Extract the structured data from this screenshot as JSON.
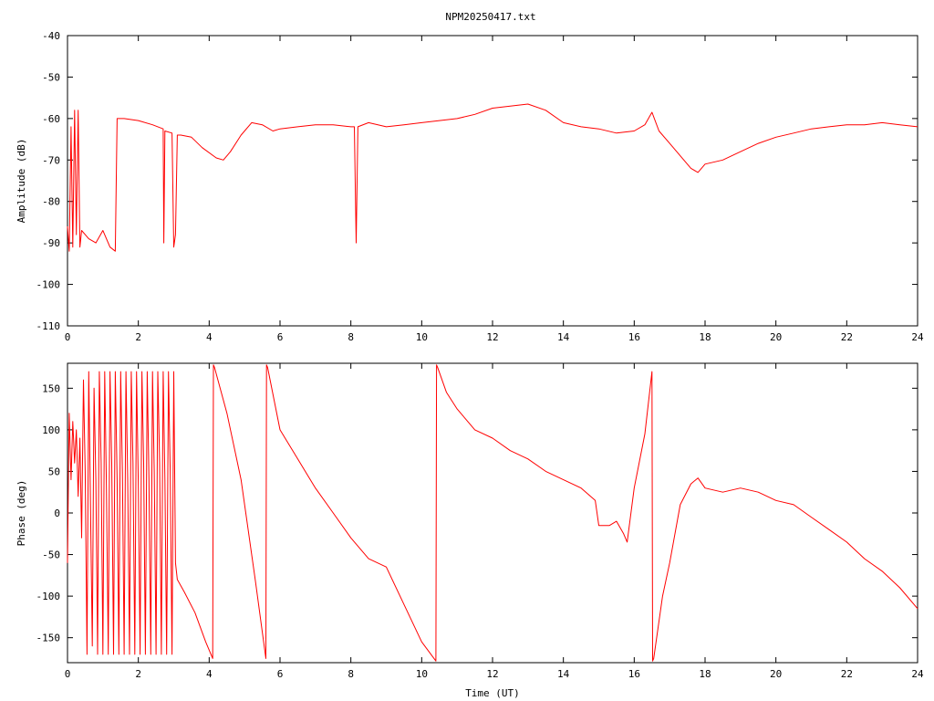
{
  "title": "NPM20250417.txt",
  "colors": {
    "trace": "#ff0000",
    "axes": "#000000",
    "background": "#ffffff"
  },
  "chart_data": [
    {
      "type": "line",
      "title": "NPM20250417.txt",
      "xlabel": "",
      "ylabel": "Amplitude (dB)",
      "xlim": [
        0,
        24
      ],
      "ylim": [
        -110,
        -40
      ],
      "xticks": [
        0,
        2,
        4,
        6,
        8,
        10,
        12,
        14,
        16,
        18,
        20,
        22,
        24
      ],
      "yticks": [
        -110,
        -100,
        -90,
        -80,
        -70,
        -60,
        -50,
        -40
      ],
      "grid": false,
      "series": [
        {
          "x": [
            0,
            0.05,
            0.1,
            0.15,
            0.2,
            0.25,
            0.3,
            0.35,
            0.4,
            0.6,
            0.8,
            1.0,
            1.2,
            1.35,
            1.4,
            1.6,
            2.0,
            2.4,
            2.7,
            2.72,
            2.75,
            2.95,
            3.0,
            3.05,
            3.1,
            3.15,
            3.2,
            3.5,
            3.8,
            4.2,
            4.4,
            4.6,
            4.9,
            5.2,
            5.5,
            5.8,
            6.0,
            6.5,
            7.0,
            7.5,
            8.0,
            8.1,
            8.15,
            8.2,
            8.5,
            9.0,
            9.5,
            10.0,
            10.5,
            11.0,
            11.5,
            12.0,
            12.5,
            13.0,
            13.5,
            14.0,
            14.5,
            15.0,
            15.5,
            16.0,
            16.3,
            16.5,
            16.7,
            17.0,
            17.3,
            17.6,
            17.8,
            18.0,
            18.5,
            19.0,
            19.5,
            20.0,
            20.5,
            21.0,
            21.5,
            22.0,
            22.5,
            23.0,
            23.5,
            24.0
          ],
          "y": [
            -86,
            -92,
            -62,
            -91,
            -58,
            -88,
            -58,
            -91,
            -87,
            -89,
            -90,
            -87,
            -91,
            -92,
            -60,
            -60,
            -60.5,
            -61.5,
            -62.5,
            -90,
            -63,
            -63.5,
            -91,
            -88,
            -64,
            -64,
            -64,
            -64.5,
            -67,
            -69.5,
            -70,
            -68,
            -64,
            -61,
            -61.5,
            -63,
            -62.5,
            -62,
            -61.5,
            -61.5,
            -62,
            -62,
            -90,
            -62,
            -61,
            -62,
            -61.5,
            -61,
            -60.5,
            -60,
            -59,
            -57.5,
            -57,
            -56.5,
            -58,
            -61,
            -62,
            -62.5,
            -63.5,
            -63,
            -61.5,
            -58.5,
            -63,
            -66,
            -69,
            -72,
            -73,
            -71,
            -70,
            -68,
            -66,
            -64.5,
            -63.5,
            -62.5,
            -62,
            -61.5,
            -61.5,
            -61,
            -61.5,
            -62
          ]
        }
      ]
    },
    {
      "type": "line",
      "title": "",
      "xlabel": "Time (UT)",
      "ylabel": "Phase (deg)",
      "xlim": [
        0,
        24
      ],
      "ylim": [
        -180,
        180
      ],
      "xticks": [
        0,
        2,
        4,
        6,
        8,
        10,
        12,
        14,
        16,
        18,
        20,
        22,
        24
      ],
      "yticks": [
        -150,
        -100,
        -50,
        0,
        50,
        100,
        150
      ],
      "grid": false,
      "series": [
        {
          "x": [
            0,
            0.05,
            0.1,
            0.15,
            0.2,
            0.25,
            0.3,
            0.35,
            0.4,
            0.45,
            0.5,
            0.55,
            0.6,
            0.65,
            0.7,
            0.75,
            0.8,
            0.85,
            0.9,
            0.95,
            1.0,
            1.05,
            1.1,
            1.15,
            1.2,
            1.25,
            1.3,
            1.35,
            1.4,
            1.45,
            1.5,
            1.55,
            1.6,
            1.65,
            1.7,
            1.75,
            1.8,
            1.85,
            1.9,
            1.95,
            2.0,
            2.05,
            2.1,
            2.15,
            2.2,
            2.25,
            2.3,
            2.35,
            2.4,
            2.45,
            2.5,
            2.55,
            2.6,
            2.65,
            2.7,
            2.75,
            2.8,
            2.85,
            2.9,
            2.95,
            3.0,
            3.05,
            3.1,
            3.3,
            3.6,
            3.9,
            4.1,
            4.12,
            4.15,
            4.5,
            4.9,
            5.3,
            5.6,
            5.62,
            5.65,
            6.0,
            6.5,
            7.0,
            7.5,
            8.0,
            8.5,
            9.0,
            9.5,
            10.0,
            10.4,
            10.42,
            10.45,
            10.7,
            11.0,
            11.5,
            12.0,
            12.5,
            13.0,
            13.5,
            14.0,
            14.5,
            14.9,
            15.0,
            15.3,
            15.5,
            15.7,
            15.8,
            16.0,
            16.3,
            16.5,
            16.52,
            16.55,
            16.8,
            17.0,
            17.3,
            17.6,
            17.8,
            18.0,
            18.5,
            19.0,
            19.5,
            20.0,
            20.5,
            21.0,
            21.5,
            22.0,
            22.5,
            23.0,
            23.5,
            24.0
          ],
          "y": [
            -60,
            120,
            40,
            110,
            60,
            100,
            20,
            90,
            -30,
            160,
            50,
            -170,
            170,
            10,
            -160,
            150,
            40,
            -170,
            170,
            60,
            -170,
            170,
            30,
            -170,
            170,
            60,
            -170,
            170,
            40,
            -170,
            170,
            50,
            -170,
            170,
            40,
            -170,
            170,
            60,
            -170,
            170,
            30,
            -170,
            170,
            60,
            -170,
            170,
            40,
            -170,
            170,
            50,
            -170,
            170,
            60,
            -170,
            170,
            40,
            -170,
            170,
            50,
            -170,
            170,
            -60,
            -80,
            -95,
            -120,
            -155,
            -175,
            178,
            175,
            120,
            40,
            -80,
            -175,
            178,
            175,
            100,
            65,
            30,
            0,
            -30,
            -55,
            -65,
            -110,
            -155,
            -178,
            178,
            175,
            145,
            125,
            100,
            90,
            75,
            65,
            50,
            40,
            30,
            15,
            -15,
            -15,
            -10,
            -25,
            -35,
            30,
            95,
            170,
            -178,
            -175,
            -100,
            -60,
            10,
            35,
            42,
            30,
            25,
            30,
            25,
            15,
            10,
            -5,
            -20,
            -35,
            -55,
            -70,
            -90,
            -115
          ]
        }
      ]
    }
  ]
}
